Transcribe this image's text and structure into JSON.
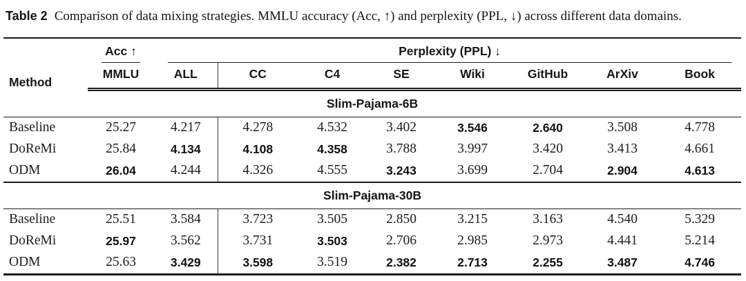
{
  "caption": {
    "label": "Table 2",
    "text": "Comparison of data mixing strategies. MMLU accuracy (Acc, ↑) and perplexity (PPL, ↓) across different data domains."
  },
  "table": {
    "method_header": "Method",
    "acc_group_header": "Acc ↑",
    "ppl_group_header": "Perplexity (PPL) ↓",
    "subheaders": [
      "MMLU",
      "ALL",
      "CC",
      "C4",
      "SE",
      "Wiki",
      "GitHub",
      "ArXiv",
      "Book"
    ],
    "sections": [
      {
        "title": "Slim-Pajama-6B",
        "rows": [
          {
            "method": "Baseline",
            "values": [
              "25.27",
              "4.217",
              "4.278",
              "4.532",
              "3.402",
              "3.546",
              "2.640",
              "3.508",
              "4.778"
            ],
            "bold": [
              false,
              false,
              false,
              false,
              false,
              true,
              true,
              false,
              false
            ]
          },
          {
            "method": "DoReMi",
            "values": [
              "25.84",
              "4.134",
              "4.108",
              "4.358",
              "3.788",
              "3.997",
              "3.420",
              "3.413",
              "4.661"
            ],
            "bold": [
              false,
              true,
              true,
              true,
              false,
              false,
              false,
              false,
              false
            ]
          },
          {
            "method": "ODM",
            "values": [
              "26.04",
              "4.244",
              "4.326",
              "4.555",
              "3.243",
              "3.699",
              "2.704",
              "2.904",
              "4.613"
            ],
            "bold": [
              true,
              false,
              false,
              false,
              true,
              false,
              false,
              true,
              true
            ]
          }
        ]
      },
      {
        "title": "Slim-Pajama-30B",
        "rows": [
          {
            "method": "Baseline",
            "values": [
              "25.51",
              "3.584",
              "3.723",
              "3.505",
              "2.850",
              "3.215",
              "3.163",
              "4.540",
              "5.329"
            ],
            "bold": [
              false,
              false,
              false,
              false,
              false,
              false,
              false,
              false,
              false
            ]
          },
          {
            "method": "DoReMi",
            "values": [
              "25.97",
              "3.562",
              "3.731",
              "3.503",
              "2.706",
              "2.985",
              "2.973",
              "4.441",
              "5.214"
            ],
            "bold": [
              true,
              false,
              false,
              true,
              false,
              false,
              false,
              false,
              false
            ]
          },
          {
            "method": "ODM",
            "values": [
              "25.63",
              "3.429",
              "3.598",
              "3.519",
              "2.382",
              "2.713",
              "2.255",
              "3.487",
              "4.746"
            ],
            "bold": [
              false,
              true,
              true,
              false,
              true,
              true,
              true,
              true,
              true
            ]
          }
        ]
      }
    ],
    "colors": {
      "text": "#1a1a1a",
      "rule": "#1a1a1a",
      "background": "#ffffff"
    }
  }
}
